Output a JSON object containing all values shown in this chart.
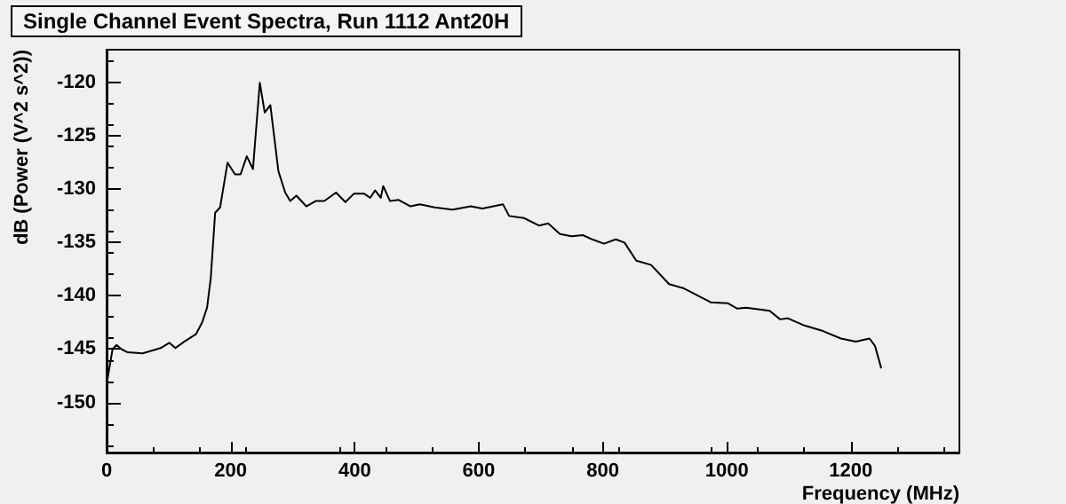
{
  "chart_data": {
    "type": "line",
    "title": "Single Channel Event Spectra, Run 1112 Ant20H",
    "xlabel": "Frequency (MHz)",
    "ylabel": "dB (Power (V^2 s^2))",
    "xlim": [
      0,
      1375
    ],
    "xticks": [
      0,
      200,
      400,
      600,
      800,
      1000,
      1200
    ],
    "ylim": [
      -154.7,
      -116.9
    ],
    "yticks": [
      -150,
      -145,
      -140,
      -135,
      -130,
      -125,
      -120
    ],
    "grid": false,
    "marker": "none",
    "line_style": "solid",
    "series": [
      {
        "color": "#000000",
        "x": [
          0,
          9.6,
          16,
          24,
          34,
          58,
          87,
          101,
          111,
          125,
          144,
          154,
          162,
          168,
          175,
          183,
          195,
          207,
          216,
          226,
          236,
          247,
          255,
          264,
          277,
          288,
          296,
          306,
          322,
          337,
          351,
          370,
          385,
          399,
          415,
          425,
          433,
          442,
          446,
          457,
          471,
          490,
          505,
          529,
          558,
          587,
          606,
          639,
          649,
          673,
          697,
          712,
          731,
          750,
          768,
          783,
          802,
          821,
          835,
          854,
          878,
          907,
          931,
          974,
          1002,
          1017,
          1031,
          1069,
          1086,
          1098,
          1126,
          1155,
          1184,
          1208,
          1230,
          1239,
          1249
        ],
        "values": [
          -148.3,
          -145,
          -144.6,
          -145,
          -145.3,
          -145.4,
          -144.9,
          -144.4,
          -144.9,
          -144.3,
          -143.6,
          -142.5,
          -141.1,
          -138.3,
          -132.2,
          -131.7,
          -127.5,
          -128.6,
          -128.6,
          -126.9,
          -128.1,
          -120,
          -122.8,
          -122.1,
          -128.3,
          -130.3,
          -131.1,
          -130.6,
          -131.6,
          -131.1,
          -131.1,
          -130.3,
          -131.2,
          -130.4,
          -130.4,
          -130.8,
          -130.1,
          -130.8,
          -129.7,
          -131.1,
          -131,
          -131.6,
          -131.4,
          -131.7,
          -131.9,
          -131.6,
          -131.8,
          -131.4,
          -132.5,
          -132.7,
          -133.4,
          -133.2,
          -134.2,
          -134.4,
          -134.3,
          -134.7,
          -135.1,
          -134.7,
          -135,
          -136.7,
          -137.1,
          -138.9,
          -139.3,
          -140.6,
          -140.7,
          -141.2,
          -141.1,
          -141.4,
          -142.2,
          -142.1,
          -142.8,
          -143.3,
          -144,
          -144.3,
          -144,
          -144.7,
          -146.8
        ]
      }
    ]
  }
}
